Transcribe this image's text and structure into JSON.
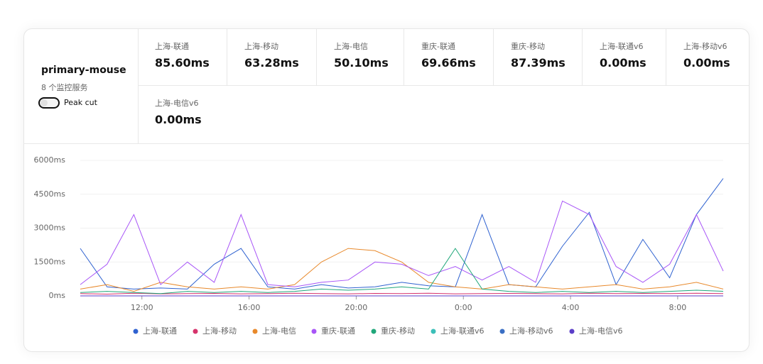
{
  "header": {
    "name": "primary-mouse",
    "subtitle": "8 个监控服务",
    "toggle_label": "Peak cut"
  },
  "stats": [
    {
      "label": "上海-联通",
      "value": "85.60ms"
    },
    {
      "label": "上海-移动",
      "value": "63.28ms"
    },
    {
      "label": "上海-电信",
      "value": "50.10ms"
    },
    {
      "label": "重庆-联通",
      "value": "69.66ms"
    },
    {
      "label": "重庆-移动",
      "value": "87.39ms"
    },
    {
      "label": "上海-联通v6",
      "value": "0.00ms"
    },
    {
      "label": "上海-移动v6",
      "value": "0.00ms"
    },
    {
      "label": "上海-电信v6",
      "value": "0.00ms"
    }
  ],
  "chart_data": {
    "type": "line",
    "x": [
      9.7,
      10.7,
      11.7,
      12.7,
      13.7,
      14.7,
      15.7,
      16.7,
      17.7,
      18.7,
      19.7,
      20.7,
      21.7,
      22.7,
      23.7,
      24.7,
      25.7,
      26.7,
      27.7,
      28.7,
      29.7,
      30.7,
      31.7,
      32.7,
      33.7
    ],
    "xlim": [
      9.7,
      33.7
    ],
    "xticks": [
      {
        "value": 12,
        "label": "12:00"
      },
      {
        "value": 16,
        "label": "16:00"
      },
      {
        "value": 20,
        "label": "20:00"
      },
      {
        "value": 24,
        "label": "0:00"
      },
      {
        "value": 28,
        "label": "4:00"
      },
      {
        "value": 32,
        "label": "8:00"
      }
    ],
    "ylim": [
      0,
      6000
    ],
    "yticks": [
      {
        "value": 0,
        "label": "0ms"
      },
      {
        "value": 1500,
        "label": "1500ms"
      },
      {
        "value": 3000,
        "label": "3000ms"
      },
      {
        "value": 4500,
        "label": "4500ms"
      },
      {
        "value": 6000,
        "label": "6000ms"
      }
    ],
    "grid": true,
    "series": [
      {
        "name": "上海-联通",
        "color": "#2f62d0",
        "values": [
          2100,
          400,
          300,
          350,
          300,
          1400,
          2100,
          400,
          300,
          500,
          350,
          400,
          600,
          450,
          400,
          3600,
          500,
          400,
          2200,
          3700,
          500,
          2500,
          800,
          3600,
          5200
        ]
      },
      {
        "name": "上海-移动",
        "color": "#d6336c",
        "values": [
          100,
          80,
          120,
          90,
          100,
          110,
          90,
          100,
          120,
          100,
          90,
          110,
          100,
          120,
          90,
          100,
          110,
          100,
          90,
          120,
          100,
          110,
          100,
          120,
          100
        ]
      },
      {
        "name": "上海-电信",
        "color": "#e8892b",
        "values": [
          300,
          500,
          200,
          600,
          400,
          300,
          400,
          300,
          500,
          1500,
          2100,
          2000,
          1500,
          600,
          400,
          300,
          500,
          400,
          300,
          400,
          500,
          300,
          400,
          600,
          300
        ]
      },
      {
        "name": "重庆-联通",
        "color": "#a855f7",
        "values": [
          500,
          1400,
          3600,
          500,
          1500,
          600,
          3600,
          500,
          400,
          600,
          700,
          1500,
          1400,
          900,
          1300,
          700,
          1300,
          600,
          4200,
          3600,
          1300,
          600,
          1400,
          3600,
          1100
        ]
      },
      {
        "name": "重庆-移动",
        "color": "#20a77a",
        "values": [
          150,
          200,
          150,
          100,
          200,
          150,
          200,
          150,
          200,
          300,
          250,
          300,
          400,
          300,
          2100,
          300,
          200,
          150,
          200,
          150,
          200,
          150,
          200,
          250,
          200
        ]
      },
      {
        "name": "上海-联通v6",
        "color": "#3bbfb8",
        "values": [
          0,
          0,
          0,
          0,
          0,
          0,
          0,
          0,
          0,
          0,
          0,
          0,
          0,
          0,
          0,
          0,
          0,
          0,
          0,
          0,
          0,
          0,
          0,
          0,
          0
        ]
      },
      {
        "name": "上海-移动v6",
        "color": "#3a6fc4",
        "values": [
          0,
          0,
          0,
          0,
          0,
          0,
          0,
          0,
          0,
          0,
          0,
          0,
          0,
          0,
          0,
          0,
          0,
          0,
          0,
          0,
          0,
          0,
          0,
          0,
          0
        ]
      },
      {
        "name": "上海-电信v6",
        "color": "#5b3ec8",
        "values": [
          0,
          0,
          0,
          0,
          0,
          0,
          0,
          0,
          0,
          0,
          0,
          0,
          0,
          0,
          0,
          0,
          0,
          0,
          0,
          0,
          0,
          0,
          0,
          0,
          0
        ]
      }
    ]
  }
}
